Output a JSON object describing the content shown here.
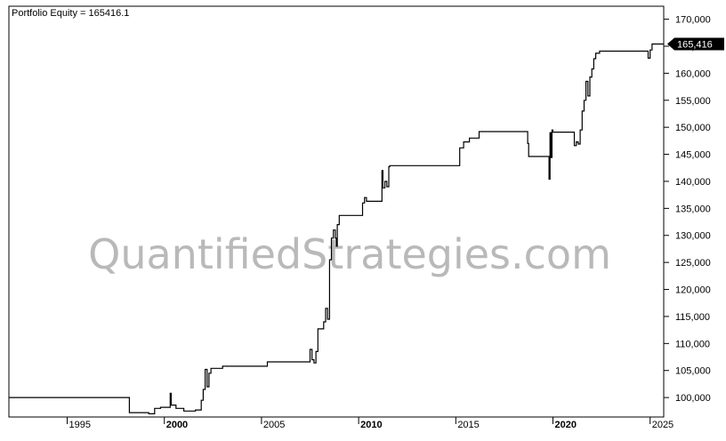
{
  "chart_data": {
    "type": "line",
    "title": "Portfolio Equity = 165416.1",
    "watermark": "QuantifiedStrategies.com",
    "last_value_label": "165,416",
    "line_color": "#000000",
    "badge_color": "#000000",
    "xlim": [
      1992.0,
      2025.7
    ],
    "ylim": [
      96400,
      172400
    ],
    "x_ticks": [
      {
        "value": 1995,
        "label": "1995",
        "bold": false
      },
      {
        "value": 2000,
        "label": "2000",
        "bold": true
      },
      {
        "value": 2005,
        "label": "2005",
        "bold": false
      },
      {
        "value": 2010,
        "label": "2010",
        "bold": true
      },
      {
        "value": 2015,
        "label": "2015",
        "bold": false
      },
      {
        "value": 2020,
        "label": "2020",
        "bold": true
      },
      {
        "value": 2025,
        "label": "2025",
        "bold": false
      }
    ],
    "y_ticks": [
      {
        "value": 100000,
        "label": "100,000"
      },
      {
        "value": 105000,
        "label": "105,000"
      },
      {
        "value": 110000,
        "label": "110,000"
      },
      {
        "value": 115000,
        "label": "115,000"
      },
      {
        "value": 120000,
        "label": "120,000"
      },
      {
        "value": 125000,
        "label": "125,000"
      },
      {
        "value": 130000,
        "label": "130,000"
      },
      {
        "value": 135000,
        "label": "135,000"
      },
      {
        "value": 140000,
        "label": "140,000"
      },
      {
        "value": 145000,
        "label": "145,000"
      },
      {
        "value": 150000,
        "label": "150,000"
      },
      {
        "value": 155000,
        "label": "155,000"
      },
      {
        "value": 160000,
        "label": "160,000"
      },
      {
        "value": 165000,
        "label": "165,000"
      },
      {
        "value": 170000,
        "label": "170,000"
      }
    ],
    "series": [
      {
        "points": [
          [
            1992.0,
            100000
          ],
          [
            1998.2,
            100000
          ],
          [
            1998.2,
            97200
          ],
          [
            1999.2,
            97200
          ],
          [
            1999.2,
            97000
          ],
          [
            1999.5,
            97000
          ],
          [
            1999.5,
            98000
          ],
          [
            1999.8,
            98000
          ],
          [
            1999.8,
            98200
          ],
          [
            2000.3,
            98200
          ],
          [
            2000.3,
            100800
          ],
          [
            2000.35,
            100800
          ],
          [
            2000.35,
            98600
          ],
          [
            2000.6,
            98600
          ],
          [
            2000.6,
            98000
          ],
          [
            2001.0,
            98000
          ],
          [
            2001.0,
            97500
          ],
          [
            2001.6,
            97500
          ],
          [
            2001.6,
            97700
          ],
          [
            2001.9,
            97700
          ],
          [
            2001.9,
            99500
          ],
          [
            2002.0,
            99500
          ],
          [
            2002.0,
            101500
          ],
          [
            2002.1,
            101500
          ],
          [
            2002.1,
            105200
          ],
          [
            2002.2,
            105200
          ],
          [
            2002.2,
            102000
          ],
          [
            2002.3,
            102000
          ],
          [
            2002.3,
            104500
          ],
          [
            2002.4,
            104500
          ],
          [
            2002.4,
            105400
          ],
          [
            2003.0,
            105400
          ],
          [
            2003.0,
            105800
          ],
          [
            2005.3,
            105800
          ],
          [
            2005.3,
            106600
          ],
          [
            2007.5,
            106600
          ],
          [
            2007.5,
            108900
          ],
          [
            2007.6,
            108900
          ],
          [
            2007.6,
            107000
          ],
          [
            2007.7,
            107000
          ],
          [
            2007.7,
            106400
          ],
          [
            2007.8,
            106400
          ],
          [
            2007.8,
            108500
          ],
          [
            2007.9,
            108500
          ],
          [
            2007.9,
            112700
          ],
          [
            2008.2,
            112700
          ],
          [
            2008.2,
            114000
          ],
          [
            2008.3,
            114000
          ],
          [
            2008.3,
            116500
          ],
          [
            2008.4,
            116500
          ],
          [
            2008.4,
            114500
          ],
          [
            2008.5,
            114500
          ],
          [
            2008.5,
            125500
          ],
          [
            2008.6,
            125500
          ],
          [
            2008.6,
            129500
          ],
          [
            2008.7,
            129500
          ],
          [
            2008.7,
            131000
          ],
          [
            2008.8,
            131000
          ],
          [
            2008.8,
            129500
          ],
          [
            2008.85,
            129500
          ],
          [
            2008.85,
            128000
          ],
          [
            2008.9,
            128000
          ],
          [
            2008.9,
            132000
          ],
          [
            2009.0,
            132000
          ],
          [
            2009.0,
            133700
          ],
          [
            2010.2,
            133700
          ],
          [
            2010.2,
            136000
          ],
          [
            2010.3,
            136000
          ],
          [
            2010.3,
            137000
          ],
          [
            2010.4,
            137000
          ],
          [
            2010.4,
            136300
          ],
          [
            2011.2,
            136300
          ],
          [
            2011.2,
            142000
          ],
          [
            2011.25,
            142000
          ],
          [
            2011.25,
            138800
          ],
          [
            2011.35,
            138800
          ],
          [
            2011.35,
            140000
          ],
          [
            2011.45,
            140000
          ],
          [
            2011.45,
            139000
          ],
          [
            2011.55,
            139000
          ],
          [
            2011.55,
            142700
          ],
          [
            2011.6,
            142700
          ],
          [
            2011.6,
            142900
          ],
          [
            2015.2,
            142900
          ],
          [
            2015.2,
            146200
          ],
          [
            2015.4,
            146200
          ],
          [
            2015.4,
            147300
          ],
          [
            2015.7,
            147300
          ],
          [
            2015.7,
            148000
          ],
          [
            2016.2,
            148000
          ],
          [
            2016.2,
            149200
          ],
          [
            2018.7,
            149200
          ],
          [
            2018.7,
            147000
          ],
          [
            2018.75,
            147000
          ],
          [
            2018.75,
            144600
          ],
          [
            2019.8,
            144600
          ],
          [
            2019.8,
            140400
          ],
          [
            2019.85,
            140400
          ],
          [
            2019.85,
            149000
          ],
          [
            2019.9,
            149000
          ],
          [
            2019.9,
            144400
          ],
          [
            2019.95,
            144400
          ],
          [
            2019.95,
            149500
          ],
          [
            2020.0,
            149500
          ],
          [
            2020.0,
            149100
          ],
          [
            2021.1,
            149100
          ],
          [
            2021.1,
            146600
          ],
          [
            2021.2,
            146600
          ],
          [
            2021.2,
            147300
          ],
          [
            2021.3,
            147300
          ],
          [
            2021.3,
            146900
          ],
          [
            2021.4,
            146900
          ],
          [
            2021.4,
            149500
          ],
          [
            2021.5,
            149500
          ],
          [
            2021.5,
            153000
          ],
          [
            2021.6,
            153000
          ],
          [
            2021.6,
            155000
          ],
          [
            2021.7,
            155000
          ],
          [
            2021.7,
            158500
          ],
          [
            2021.8,
            158500
          ],
          [
            2021.8,
            155800
          ],
          [
            2021.9,
            155800
          ],
          [
            2021.9,
            159300
          ],
          [
            2022.0,
            159300
          ],
          [
            2022.0,
            160800
          ],
          [
            2022.1,
            160800
          ],
          [
            2022.1,
            162700
          ],
          [
            2022.2,
            162700
          ],
          [
            2022.2,
            163700
          ],
          [
            2022.4,
            163700
          ],
          [
            2022.4,
            164100
          ],
          [
            2024.9,
            164100
          ],
          [
            2024.9,
            162800
          ],
          [
            2025.0,
            162800
          ],
          [
            2025.0,
            164300
          ],
          [
            2025.1,
            164300
          ],
          [
            2025.1,
            165416
          ],
          [
            2025.7,
            165416
          ]
        ]
      }
    ]
  }
}
